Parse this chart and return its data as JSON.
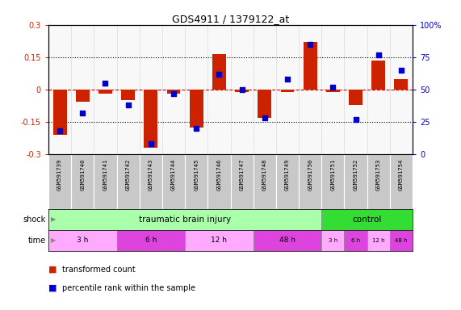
{
  "title": "GDS4911 / 1379122_at",
  "samples": [
    "GSM591739",
    "GSM591740",
    "GSM591741",
    "GSM591742",
    "GSM591743",
    "GSM591744",
    "GSM591745",
    "GSM591746",
    "GSM591747",
    "GSM591748",
    "GSM591749",
    "GSM591750",
    "GSM591751",
    "GSM591752",
    "GSM591753",
    "GSM591754"
  ],
  "red_values": [
    -0.21,
    -0.055,
    -0.02,
    -0.05,
    -0.27,
    -0.02,
    -0.175,
    0.165,
    -0.01,
    -0.13,
    -0.01,
    0.22,
    -0.01,
    -0.07,
    0.135,
    0.05
  ],
  "blue_values": [
    18,
    32,
    55,
    38,
    8,
    47,
    20,
    62,
    50,
    28,
    58,
    85,
    52,
    27,
    77,
    65
  ],
  "ylim_left": [
    -0.3,
    0.3
  ],
  "ylim_right": [
    0,
    100
  ],
  "yticks_left": [
    -0.3,
    -0.15,
    0.0,
    0.15,
    0.3
  ],
  "yticks_right": [
    0,
    25,
    50,
    75,
    100
  ],
  "ytick_labels_left": [
    "-0.3",
    "-0.15",
    "0",
    "0.15",
    "0.3"
  ],
  "ytick_labels_right": [
    "0",
    "25",
    "50",
    "75",
    "100%"
  ],
  "hlines_dotted": [
    0.15,
    -0.15
  ],
  "hline_zero_color": "#CC0000",
  "bar_color": "#CC2200",
  "dot_color": "#0000CC",
  "plot_bg": "#F8F8F8",
  "label_bg": "#C8C8C8",
  "tbi_color": "#AAFFAA",
  "control_color": "#33DD33",
  "time_colors": [
    "#FFAAFF",
    "#DD44DD",
    "#FFAAFF",
    "#DD44DD",
    "#FFAAFF",
    "#DD44DD",
    "#FFAAFF",
    "#DD44DD"
  ],
  "shock_label": "shock",
  "time_label": "time",
  "legend_red": "transformed count",
  "legend_blue": "percentile rank within the sample",
  "tbi_samples": 12,
  "control_samples": 4,
  "time_data": [
    {
      "label": "3 h",
      "count": 3
    },
    {
      "label": "6 h",
      "count": 3
    },
    {
      "label": "12 h",
      "count": 3
    },
    {
      "label": "48 h",
      "count": 3
    },
    {
      "label": "3 h",
      "count": 1
    },
    {
      "label": "6 h",
      "count": 1
    },
    {
      "label": "12 h",
      "count": 1
    },
    {
      "label": "48 h",
      "count": 1
    }
  ]
}
